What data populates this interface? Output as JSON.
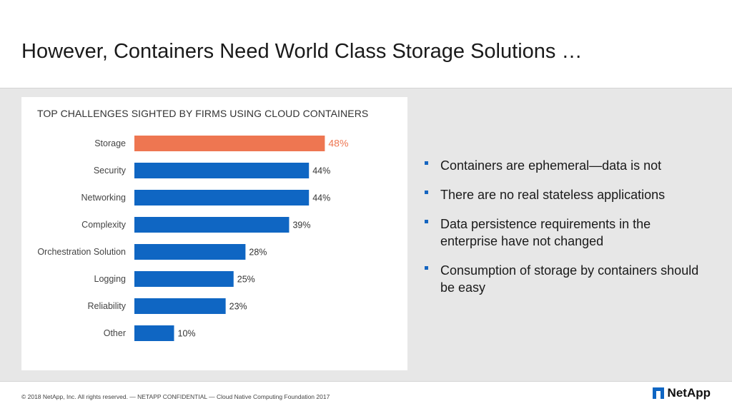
{
  "slide": {
    "title": "However, Containers Need World Class Storage Solutions …"
  },
  "chart_data": {
    "type": "bar",
    "orientation": "horizontal",
    "title": "TOP CHALLENGES SIGHTED BY FIRMS USING CLOUD CONTAINERS",
    "categories": [
      "Storage",
      "Security",
      "Networking",
      "Complexity",
      "Orchestration Solution",
      "Logging",
      "Reliability",
      "Other"
    ],
    "values": [
      48,
      44,
      44,
      39,
      28,
      25,
      23,
      10
    ],
    "labels": [
      "48%",
      "44%",
      "44%",
      "39%",
      "28%",
      "25%",
      "23%",
      "10%"
    ],
    "highlight_index": 0,
    "colors": {
      "bar": "#0f66c3",
      "highlight": "#ee7651",
      "highlight_label": "#ee7651",
      "label": "#333333"
    },
    "grid": false
  },
  "bullets": [
    "Containers are ephemeral—data is not",
    "There are no real stateless applications",
    "Data persistence requirements in the enterprise have not changed",
    "Consumption of storage by containers should be easy"
  ],
  "footer": {
    "text": "© 2018 NetApp, Inc. All rights reserved.   — NETAPP CONFIDENTIAL — Cloud Native Computing Foundation 2017"
  },
  "logo": {
    "text": "NetApp"
  }
}
